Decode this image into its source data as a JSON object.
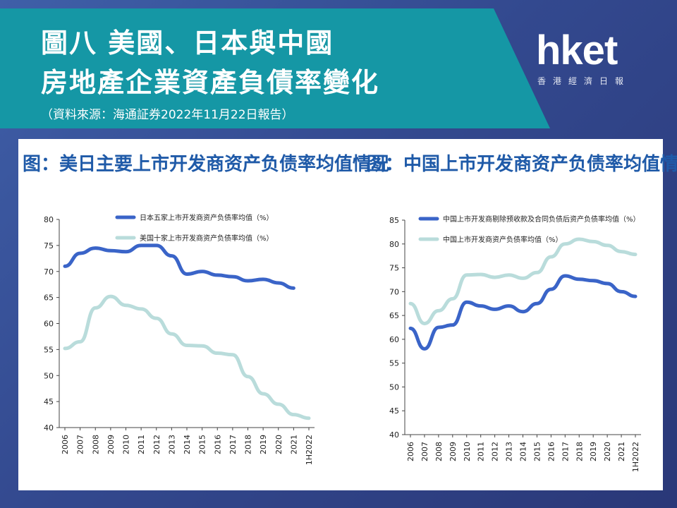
{
  "header": {
    "title_line1": "圖八 美國、日本與中國",
    "title_line2": "房地產企業資產負債率變化",
    "source": "（資料來源：海通証券2022年11月22日報告）"
  },
  "logo": {
    "name": "hket",
    "tagline": "香港經濟日報"
  },
  "colors": {
    "header_bg": "#1597a5",
    "series_dark": "#3a64c8",
    "series_light": "#b9dcdb",
    "chart_title": "#1f5aa8"
  },
  "chart_data": [
    {
      "type": "line",
      "title": "图：美日主要上市开发商资产负债率均值情况",
      "categories": [
        "2006",
        "2007",
        "2008",
        "2009",
        "2010",
        "2011",
        "2012",
        "2013",
        "2014",
        "2015",
        "2016",
        "2017",
        "2018",
        "2019",
        "2020",
        "2021",
        "1H2022"
      ],
      "ylim": [
        40,
        80
      ],
      "yticks": [
        40,
        45,
        50,
        55,
        60,
        65,
        70,
        75,
        80
      ],
      "grid": false,
      "legend_position": "top",
      "series": [
        {
          "name": "日本五家上市开发商资产负债率均值（%）",
          "color": "dark",
          "values": [
            71,
            73.5,
            74.5,
            74,
            73.8,
            75,
            75,
            73,
            69.5,
            70,
            69.3,
            69,
            68.2,
            68.5,
            67.8,
            66.8,
            null
          ]
        },
        {
          "name": "美国十家上市开发商资产负债率均值（%）",
          "color": "light",
          "values": [
            55.2,
            56.5,
            63,
            65.2,
            63.5,
            62.8,
            61,
            58,
            55.8,
            55.7,
            54.3,
            54,
            49.8,
            46.5,
            44.5,
            42.5,
            41.8
          ]
        }
      ]
    },
    {
      "type": "line",
      "title": "图：中国上市开发商资产负债率均值情况",
      "categories": [
        "2006",
        "2007",
        "2008",
        "2009",
        "2010",
        "2011",
        "2012",
        "2013",
        "2014",
        "2015",
        "2016",
        "2017",
        "2018",
        "2019",
        "2020",
        "2021",
        "1H2022"
      ],
      "ylim": [
        40,
        85
      ],
      "yticks": [
        40,
        45,
        50,
        55,
        60,
        65,
        70,
        75,
        80,
        85
      ],
      "grid": false,
      "legend_position": "top",
      "series": [
        {
          "name": "中国上市开发商剔除预收款及合同负债后资产负债率均值（%）",
          "color": "dark",
          "values": [
            62.3,
            58,
            62.5,
            63,
            67.8,
            67,
            66.3,
            67,
            65.8,
            67.5,
            70.5,
            73.3,
            72.6,
            72.3,
            71.7,
            70,
            69
          ]
        },
        {
          "name": "中国上市开发商资产负债率均值（%）",
          "color": "light",
          "values": [
            67.5,
            63.3,
            66,
            68.5,
            73.5,
            73.6,
            73,
            73.5,
            72.8,
            74,
            77.3,
            80,
            81,
            80.5,
            79.7,
            78.4,
            77.8
          ]
        }
      ]
    }
  ]
}
